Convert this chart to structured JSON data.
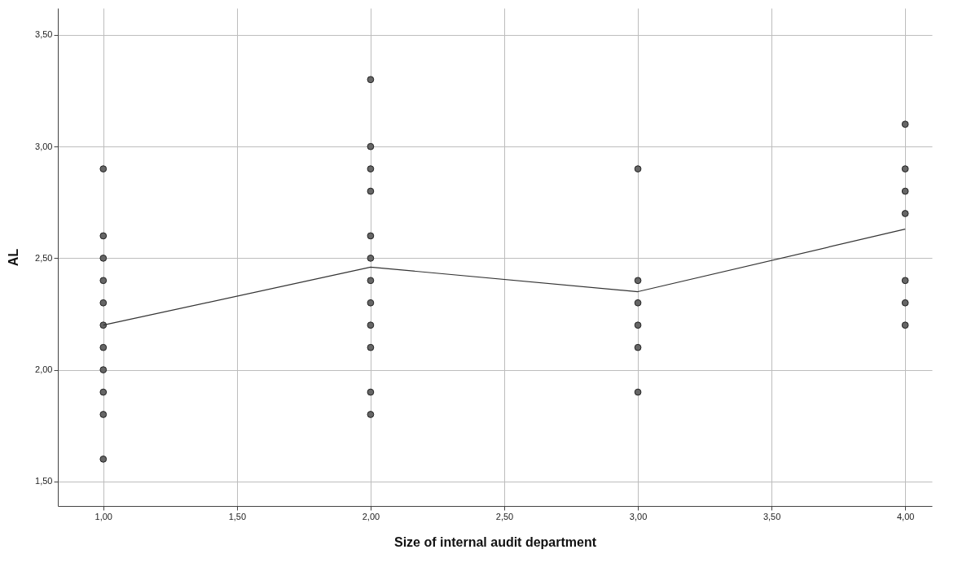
{
  "chart_data": {
    "type": "scatter",
    "xlabel": "Size of internal audit department",
    "ylabel": "AL",
    "xlim": [
      0.83,
      4.1
    ],
    "ylim": [
      1.39,
      3.62
    ],
    "xticks": [
      {
        "value": 1,
        "label": "1,00"
      },
      {
        "value": 1.5,
        "label": "1,50"
      },
      {
        "value": 2,
        "label": "2,00"
      },
      {
        "value": 2.5,
        "label": "2,50"
      },
      {
        "value": 3,
        "label": "3,00"
      },
      {
        "value": 3.5,
        "label": "3,50"
      },
      {
        "value": 4,
        "label": "4,00"
      }
    ],
    "yticks": [
      {
        "value": 1.5,
        "label": "1,50"
      },
      {
        "value": 2,
        "label": "2,00"
      },
      {
        "value": 2.5,
        "label": "2,50"
      },
      {
        "value": 3,
        "label": "3,00"
      },
      {
        "value": 3.5,
        "label": "3,50"
      }
    ],
    "grid": true,
    "marker": "circle",
    "series": [
      {
        "color": "#666666",
        "x": [
          1,
          1,
          1,
          1,
          1,
          1,
          1,
          1,
          1,
          1,
          1,
          2,
          2,
          2,
          2,
          2,
          2,
          2,
          2,
          2,
          2,
          2,
          2,
          3,
          3,
          3,
          3,
          3,
          3,
          4,
          4,
          4,
          4,
          4,
          4,
          4
        ],
        "values": [
          2.9,
          2.6,
          2.5,
          2.4,
          2.3,
          2.2,
          2.1,
          2.0,
          1.9,
          1.8,
          1.6,
          3.3,
          3.0,
          2.9,
          2.8,
          2.6,
          2.5,
          2.4,
          2.3,
          2.2,
          2.1,
          1.9,
          1.8,
          2.9,
          2.4,
          2.3,
          2.2,
          2.1,
          1.9,
          3.1,
          2.9,
          2.8,
          2.7,
          2.4,
          2.3,
          2.2
        ]
      },
      {
        "type": "line",
        "marker": "none",
        "color": "#333333",
        "x": [
          1,
          2,
          3,
          4
        ],
        "values": [
          2.2,
          2.46,
          2.35,
          2.63
        ]
      }
    ]
  }
}
